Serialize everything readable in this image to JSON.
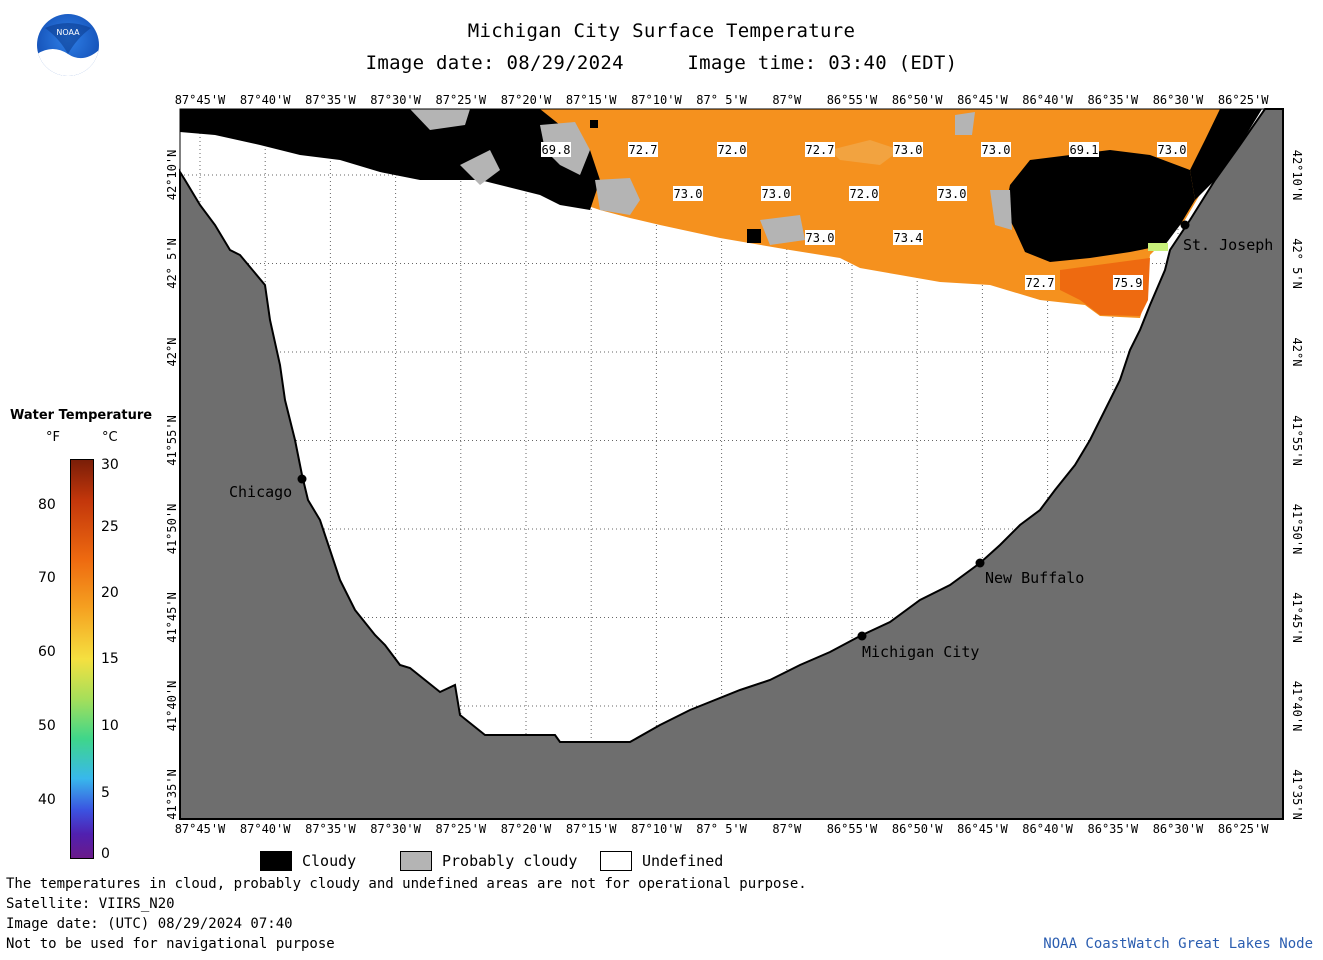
{
  "header": {
    "title": "Michigan City Surface Temperature",
    "image_date_label": "Image date: 08/29/2024",
    "image_time_label": "Image time: 03:40 (EDT)"
  },
  "logo": {
    "text": "NOAA",
    "icon": "noaa-logo-icon"
  },
  "map": {
    "lon_labels": [
      "87°45'W",
      "87°40'W",
      "87°35'W",
      "87°30'W",
      "87°25'W",
      "87°20'W",
      "87°15'W",
      "87°10'W",
      "87° 5'W",
      "87°W",
      "86°55'W",
      "86°50'W",
      "86°45'W",
      "86°40'W",
      "86°35'W",
      "86°30'W",
      "86°25'W"
    ],
    "lat_labels": [
      "42°10'N",
      "42° 5'N",
      "42°N",
      "41°55'N",
      "41°50'N",
      "41°45'N",
      "41°40'N",
      "41°35'N"
    ],
    "cities": [
      {
        "name": "Chicago"
      },
      {
        "name": "Michigan City"
      },
      {
        "name": "New Buffalo"
      },
      {
        "name": "St. Joseph"
      }
    ],
    "contour_labels": [
      "69.8",
      "72.7",
      "72.0",
      "72.7",
      "73.0",
      "73.0",
      "69.1",
      "73.0",
      "73.0",
      "73.0",
      "72.0",
      "73.0",
      "73.0",
      "73.4",
      "72.7",
      "75.9"
    ],
    "colors": {
      "land": "#6e6e6e",
      "water_warm": "#f5911e",
      "water_hot": "#ee6a10",
      "cloudy": "#000000",
      "probably_cloudy": "#b4b4b4",
      "undefined": "#ffffff"
    }
  },
  "scale": {
    "title": "Water Temperature",
    "unit_f": "°F",
    "unit_c": "°C",
    "ticks_f": [
      "80",
      "70",
      "60",
      "50",
      "40"
    ],
    "ticks_c": [
      "30",
      "25",
      "20",
      "15",
      "10",
      "5",
      "0"
    ]
  },
  "legend": {
    "cloudy": "Cloudy",
    "probably_cloudy": "Probably cloudy",
    "undefined": "Undefined"
  },
  "footer": {
    "note": "The temperatures in cloud, probably cloudy and undefined areas are not for operational purpose.",
    "satellite": "Satellite: VIIRS_N20",
    "image_date_utc": "Image date: (UTC) 08/29/2024  07:40",
    "disclaimer": "Not to be used for navigational purpose",
    "credit": "NOAA CoastWatch Great Lakes Node"
  }
}
